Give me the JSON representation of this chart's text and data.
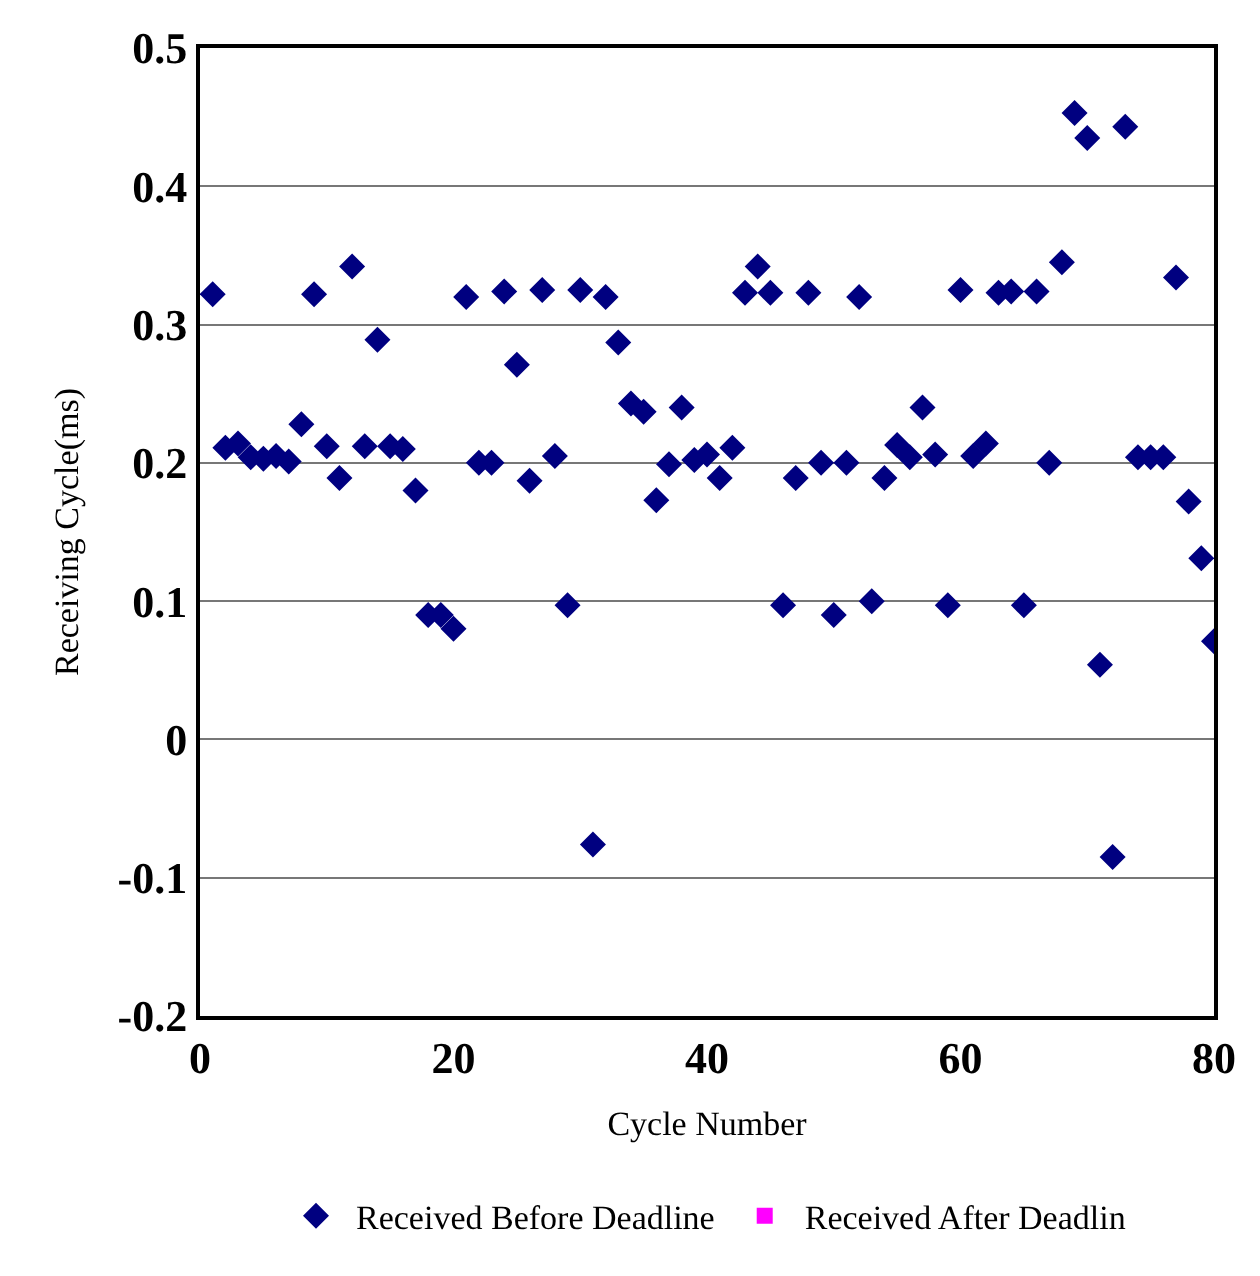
{
  "chart_data": {
    "type": "scatter",
    "xlabel": "Cycle Number",
    "ylabel": "Receiving Cycle(ms)",
    "xlim": [
      0,
      80
    ],
    "xticks": [
      0,
      20,
      40,
      60,
      80
    ],
    "ylim": [
      -0.2,
      0.5
    ],
    "yticks": [
      -0.2,
      -0.1,
      0,
      0.1,
      0.2,
      0.3,
      0.4,
      0.5
    ],
    "grid": "y",
    "legend": "bottom",
    "series": [
      {
        "name": "Received Before Deadline",
        "color": "#000080",
        "marker": "diamond",
        "x": [
          1,
          2,
          3,
          4,
          5,
          6,
          7,
          8,
          9,
          10,
          11,
          12,
          13,
          14,
          15,
          16,
          17,
          18,
          19,
          20,
          21,
          22,
          23,
          24,
          25,
          26,
          27,
          28,
          29,
          30,
          31,
          32,
          33,
          34,
          35,
          36,
          37,
          38,
          39,
          40,
          41,
          42,
          43,
          44,
          45,
          46,
          47,
          48,
          49,
          50,
          51,
          52,
          53,
          54,
          55,
          56,
          57,
          58,
          59,
          60,
          61,
          62,
          63,
          64,
          65,
          66,
          67,
          68,
          69,
          70,
          71,
          72,
          73,
          74,
          75,
          76,
          77,
          78,
          79,
          80
        ],
        "values": [
          0.322,
          0.211,
          0.214,
          0.204,
          0.203,
          0.205,
          0.201,
          0.228,
          0.322,
          0.212,
          0.189,
          0.342,
          0.212,
          0.289,
          0.212,
          0.21,
          0.18,
          0.09,
          0.09,
          0.08,
          0.32,
          0.2,
          0.2,
          0.324,
          0.271,
          0.187,
          0.325,
          0.205,
          0.097,
          0.325,
          -0.076,
          0.32,
          0.287,
          0.243,
          0.237,
          0.173,
          0.199,
          0.24,
          0.202,
          0.206,
          0.189,
          0.211,
          0.323,
          0.342,
          0.323,
          0.097,
          0.189,
          0.323,
          0.2,
          0.09,
          0.2,
          0.32,
          0.1,
          0.189,
          0.213,
          0.204,
          0.24,
          0.206,
          0.097,
          0.325,
          0.205,
          0.214,
          0.323,
          0.324,
          0.097,
          0.324,
          0.2,
          0.345,
          0.453,
          0.435,
          0.054,
          -0.085,
          0.443,
          0.204,
          0.204,
          0.204,
          0.334,
          0.172,
          0.131,
          0.071
        ]
      },
      {
        "name": "Received After Deadlin",
        "color": "#ff00ff",
        "marker": "square"
      }
    ]
  }
}
